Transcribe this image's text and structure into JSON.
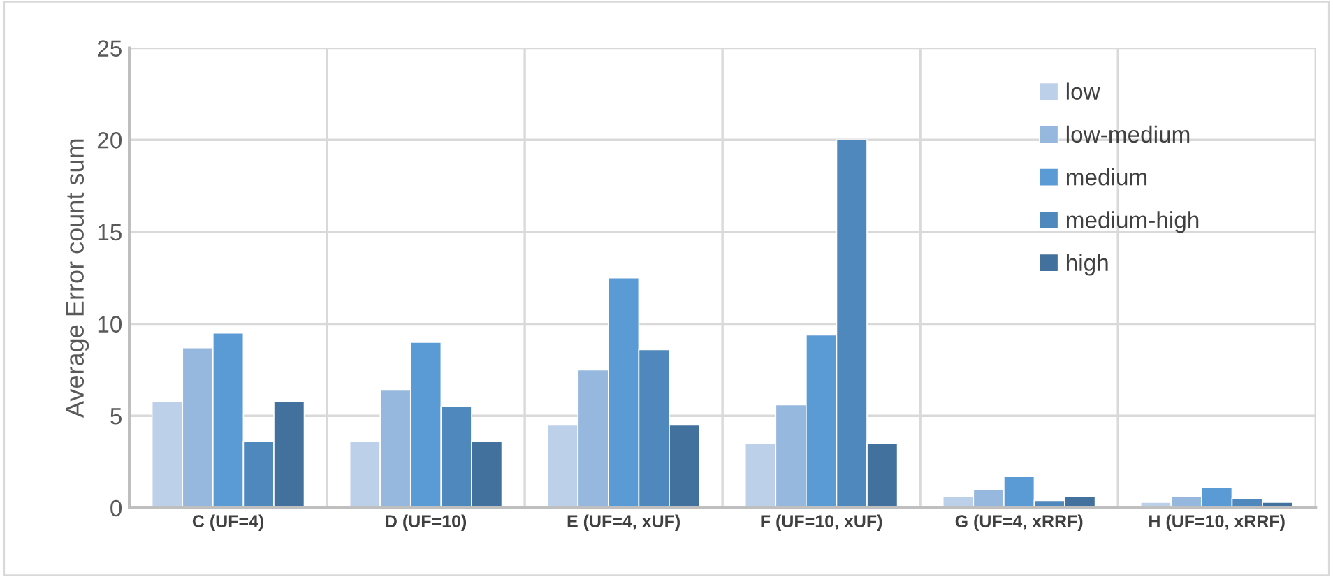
{
  "chart_data": {
    "type": "bar",
    "ylabel": "Average Error count sum",
    "categories": [
      "C (UF=4)",
      "D (UF=10)",
      "E (UF=4, xUF)",
      "F (UF=10, xUF)",
      "G (UF=4, xRRF)",
      "H (UF=10, xRRF)"
    ],
    "series": [
      {
        "name": "low",
        "color": "#bdd0ea",
        "values": [
          5.8,
          3.6,
          4.5,
          3.5,
          0.6,
          0.3
        ]
      },
      {
        "name": "low-medium",
        "color": "#97b8de",
        "values": [
          8.7,
          6.4,
          7.5,
          5.6,
          1.0,
          0.6
        ]
      },
      {
        "name": "medium",
        "color": "#5b9bd5",
        "values": [
          9.5,
          9.0,
          12.5,
          9.4,
          1.7,
          1.1
        ]
      },
      {
        "name": "medium-high",
        "color": "#4e88bc",
        "values": [
          3.6,
          5.5,
          8.6,
          20.0,
          0.4,
          0.5
        ]
      },
      {
        "name": "high",
        "color": "#41719c",
        "values": [
          5.8,
          3.6,
          4.5,
          3.5,
          0.6,
          0.3
        ]
      }
    ],
    "ylim": [
      0,
      25
    ],
    "yticks": [
      0,
      5,
      10,
      15,
      20,
      25
    ],
    "grid": true,
    "legend": "top right"
  }
}
